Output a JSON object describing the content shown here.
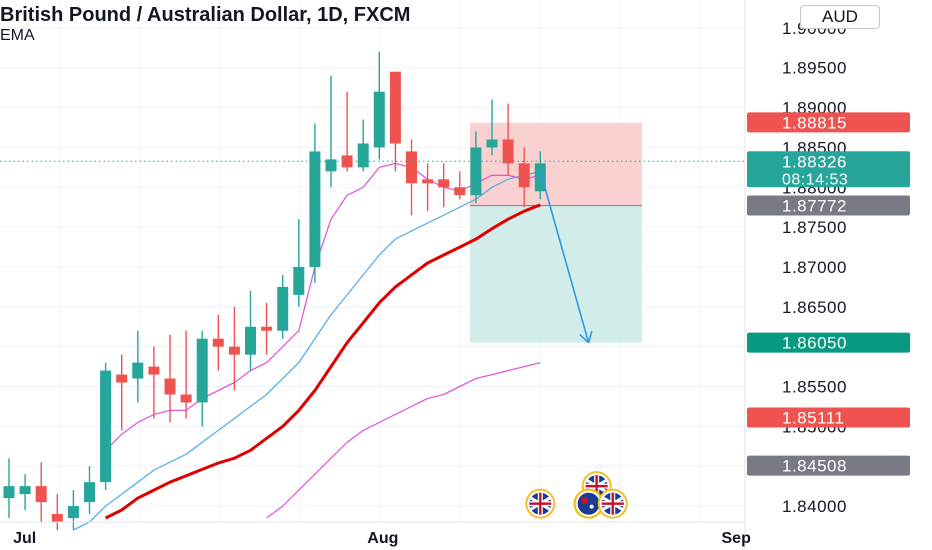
{
  "header": {
    "title": "British Pound / Australian Dollar, 1D, FXCM",
    "indicator": "EMA",
    "currency_button": "AUD"
  },
  "colors": {
    "up": "#26a69a",
    "down": "#ef5350",
    "ema_red": "#e00000",
    "ema_blue": "#5aaee8",
    "ema_pink": "#e05bd8",
    "stop_zone": "#f9c5c5",
    "target_zone": "#c9e9e5",
    "arrow": "#2a9ae8",
    "grid": "#f0f3fa"
  },
  "chart_data": {
    "type": "candlestick",
    "symbol": "GBPAUD",
    "timeframe": "1D",
    "ylim": [
      1.838,
      1.9035
    ],
    "x_tick_labels": [
      {
        "label": "Jul",
        "index": 1
      },
      {
        "label": "Aug",
        "index": 23
      },
      {
        "label": "Sep",
        "index": 45
      }
    ],
    "y_tick_labels": [
      "1.90000",
      "1.89500",
      "1.89000",
      "1.88500",
      "1.88000",
      "1.87500",
      "1.87000",
      "1.86500",
      "1.86000",
      "1.85500",
      "1.85000",
      "1.84500",
      "1.84000"
    ],
    "y_ticks": [
      1.9,
      1.895,
      1.89,
      1.885,
      1.88,
      1.875,
      1.87,
      1.865,
      1.86,
      1.855,
      1.85,
      1.845,
      1.84
    ],
    "candles": [
      {
        "o": 1.841,
        "h": 1.846,
        "l": 1.8385,
        "c": 1.8425
      },
      {
        "o": 1.8415,
        "h": 1.844,
        "l": 1.8395,
        "c": 1.8425
      },
      {
        "o": 1.8425,
        "h": 1.8455,
        "l": 1.838,
        "c": 1.8405
      },
      {
        "o": 1.839,
        "h": 1.8415,
        "l": 1.837,
        "c": 1.838
      },
      {
        "o": 1.8385,
        "h": 1.842,
        "l": 1.837,
        "c": 1.84
      },
      {
        "o": 1.8405,
        "h": 1.845,
        "l": 1.839,
        "c": 1.843
      },
      {
        "o": 1.843,
        "h": 1.858,
        "l": 1.842,
        "c": 1.857
      },
      {
        "o": 1.8565,
        "h": 1.859,
        "l": 1.8495,
        "c": 1.8555
      },
      {
        "o": 1.856,
        "h": 1.862,
        "l": 1.853,
        "c": 1.858
      },
      {
        "o": 1.8575,
        "h": 1.86,
        "l": 1.851,
        "c": 1.8565
      },
      {
        "o": 1.856,
        "h": 1.8615,
        "l": 1.8505,
        "c": 1.854
      },
      {
        "o": 1.854,
        "h": 1.862,
        "l": 1.851,
        "c": 1.853
      },
      {
        "o": 1.853,
        "h": 1.862,
        "l": 1.85,
        "c": 1.861
      },
      {
        "o": 1.861,
        "h": 1.864,
        "l": 1.857,
        "c": 1.86
      },
      {
        "o": 1.86,
        "h": 1.865,
        "l": 1.8545,
        "c": 1.859
      },
      {
        "o": 1.859,
        "h": 1.867,
        "l": 1.857,
        "c": 1.8625
      },
      {
        "o": 1.8625,
        "h": 1.8655,
        "l": 1.859,
        "c": 1.862
      },
      {
        "o": 1.862,
        "h": 1.869,
        "l": 1.861,
        "c": 1.8675
      },
      {
        "o": 1.8665,
        "h": 1.876,
        "l": 1.865,
        "c": 1.87
      },
      {
        "o": 1.87,
        "h": 1.888,
        "l": 1.868,
        "c": 1.8845
      },
      {
        "o": 1.882,
        "h": 1.894,
        "l": 1.88,
        "c": 1.8835
      },
      {
        "o": 1.884,
        "h": 1.892,
        "l": 1.882,
        "c": 1.8825
      },
      {
        "o": 1.8825,
        "h": 1.8885,
        "l": 1.882,
        "c": 1.8855
      },
      {
        "o": 1.885,
        "h": 1.897,
        "l": 1.8835,
        "c": 1.892
      },
      {
        "o": 1.8945,
        "h": 1.8945,
        "l": 1.882,
        "c": 1.8855
      },
      {
        "o": 1.8845,
        "h": 1.886,
        "l": 1.8765,
        "c": 1.8805
      },
      {
        "o": 1.881,
        "h": 1.883,
        "l": 1.877,
        "c": 1.8805
      },
      {
        "o": 1.881,
        "h": 1.883,
        "l": 1.8775,
        "c": 1.88
      },
      {
        "o": 1.88,
        "h": 1.882,
        "l": 1.8785,
        "c": 1.879
      },
      {
        "o": 1.879,
        "h": 1.887,
        "l": 1.878,
        "c": 1.885
      },
      {
        "o": 1.885,
        "h": 1.891,
        "l": 1.884,
        "c": 1.886
      },
      {
        "o": 1.886,
        "h": 1.8905,
        "l": 1.8815,
        "c": 1.883
      },
      {
        "o": 1.883,
        "h": 1.885,
        "l": 1.8775,
        "c": 1.88
      },
      {
        "o": 1.8795,
        "h": 1.8845,
        "l": 1.8785,
        "c": 1.883
      }
    ],
    "ema_series": [
      {
        "color_key": "ema_pink",
        "values": [
          null,
          null,
          null,
          null,
          null,
          null,
          1.847,
          1.849,
          1.8505,
          1.8515,
          1.852,
          1.852,
          1.8535,
          1.8545,
          1.8555,
          1.857,
          1.858,
          1.86,
          1.862,
          1.87,
          1.876,
          1.879,
          1.88,
          1.8825,
          1.883,
          1.8825,
          1.881,
          1.88,
          1.8795,
          1.8805,
          1.8815,
          1.8815,
          1.881,
          1.8815
        ]
      },
      {
        "color_key": "ema_blue",
        "values": [
          null,
          null,
          null,
          null,
          1.837,
          1.838,
          1.84,
          1.8415,
          1.843,
          1.8445,
          1.8455,
          1.8465,
          1.848,
          1.8495,
          1.851,
          1.8525,
          1.854,
          1.856,
          1.858,
          1.861,
          1.864,
          1.8665,
          1.869,
          1.8715,
          1.8735,
          1.8745,
          1.8755,
          1.8765,
          1.8775,
          1.8785,
          1.88,
          1.881,
          1.8815,
          1.882
        ]
      },
      {
        "color_key": "ema_red",
        "values": [
          null,
          null,
          null,
          null,
          null,
          null,
          1.8385,
          1.8395,
          1.841,
          1.842,
          1.843,
          1.8438,
          1.8446,
          1.8454,
          1.846,
          1.847,
          1.8485,
          1.85,
          1.852,
          1.8545,
          1.8575,
          1.8605,
          1.863,
          1.8655,
          1.8675,
          1.869,
          1.8705,
          1.8715,
          1.8725,
          1.8735,
          1.8748,
          1.876,
          1.877,
          1.8778
        ]
      },
      {
        "color_key": "ema_pink",
        "values": [
          null,
          null,
          null,
          null,
          null,
          null,
          null,
          null,
          null,
          null,
          null,
          null,
          null,
          null,
          null,
          null,
          1.8385,
          1.84,
          1.842,
          1.844,
          1.846,
          1.848,
          1.8495,
          1.8505,
          1.8515,
          1.8525,
          1.8535,
          1.854,
          1.855,
          1.856,
          1.8565,
          1.857,
          1.8575,
          1.858
        ]
      }
    ],
    "position": {
      "start_index": 29,
      "end_index": 39,
      "stop": 1.8881,
      "entry": 1.8777,
      "target": 1.8605,
      "arrow_from": {
        "index": 33,
        "value": 1.882
      },
      "arrow_to": {
        "index": 36,
        "value": 1.8605
      }
    },
    "current_price": 1.88326,
    "price_labels": [
      {
        "text": "1.88815",
        "value": 1.88815,
        "color_key": "down",
        "countdown": ""
      },
      {
        "text": "1.88326",
        "value": 1.88326,
        "color_key": "up",
        "countdown": "08:14:53"
      },
      {
        "text": "1.87772",
        "value": 1.87772,
        "color": "#787b86",
        "countdown": ""
      },
      {
        "text": "1.86050",
        "value": 1.8605,
        "color": "#089981",
        "countdown": ""
      },
      {
        "text": "1.85111",
        "value": 1.85111,
        "color_key": "down",
        "countdown": ""
      },
      {
        "text": "1.84508",
        "value": 1.84508,
        "color": "#787b86",
        "countdown": ""
      }
    ],
    "event_flags": [
      {
        "icon": "uk-flag-icon",
        "index": 36.5,
        "value": 1.8425
      },
      {
        "icon": "uk-flag-icon",
        "index": 33,
        "value": 1.8403
      },
      {
        "icon": "au-flag-icon",
        "index": 36,
        "value": 1.8403
      },
      {
        "icon": "uk-flag-icon",
        "index": 37.5,
        "value": 1.8403
      }
    ]
  }
}
